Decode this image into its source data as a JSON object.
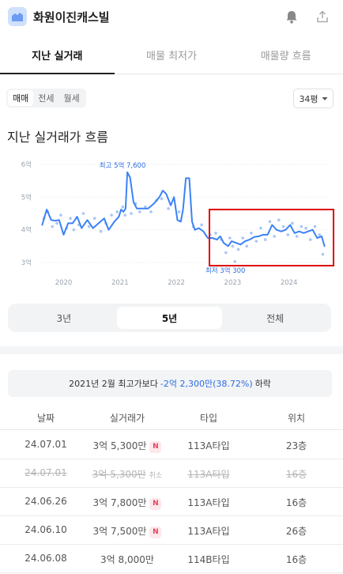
{
  "header": {
    "title": "화원이진캐스빌",
    "logo_icon": "building-logo-icon",
    "bell_icon": "bell-icon",
    "share_icon": "share-icon"
  },
  "tabs": [
    {
      "label": "지난 실거래",
      "active": true
    },
    {
      "label": "매물 최저가",
      "active": false
    },
    {
      "label": "매물량 흐름",
      "active": false
    }
  ],
  "trade_type": [
    {
      "label": "매매",
      "active": true
    },
    {
      "label": "전세",
      "active": false
    },
    {
      "label": "월세",
      "active": false
    }
  ],
  "size_select": {
    "value": "34평",
    "icon": "caret-down-icon"
  },
  "section_title": "지난 실거래가 흐름",
  "chart_data": {
    "type": "line",
    "y_ticks": [
      "3억",
      "4억",
      "5억",
      "6억"
    ],
    "x_ticks": [
      "2020",
      "2021",
      "2022",
      "2023",
      "2024"
    ],
    "ylim": [
      3.0,
      6.0
    ],
    "xlim": [
      2019.6,
      2024.65
    ],
    "line_color": "#3b82f6",
    "point_color": "#a9c6f6",
    "highlight_box_color": "#e00000",
    "annotations": {
      "max_label": "최고 5억 7,600",
      "min_label": "최저 3억 300"
    },
    "series": [
      {
        "values": [
          [
            2019.62,
            4.15
          ],
          [
            2019.7,
            4.62
          ],
          [
            2019.78,
            4.3
          ],
          [
            2019.85,
            4.28
          ],
          [
            2019.92,
            4.3
          ],
          [
            2020.0,
            3.85
          ],
          [
            2020.08,
            4.2
          ],
          [
            2020.16,
            4.2
          ],
          [
            2020.24,
            4.4
          ],
          [
            2020.32,
            4.05
          ],
          [
            2020.42,
            4.3
          ],
          [
            2020.52,
            4.05
          ],
          [
            2020.62,
            4.2
          ],
          [
            2020.72,
            4.35
          ],
          [
            2020.8,
            4.0
          ],
          [
            2020.9,
            4.25
          ],
          [
            2020.98,
            4.4
          ],
          [
            2021.02,
            4.62
          ],
          [
            2021.06,
            4.55
          ],
          [
            2021.1,
            4.65
          ],
          [
            2021.13,
            5.76
          ],
          [
            2021.18,
            5.6
          ],
          [
            2021.24,
            4.85
          ],
          [
            2021.3,
            4.65
          ],
          [
            2021.4,
            4.65
          ],
          [
            2021.5,
            4.65
          ],
          [
            2021.6,
            4.8
          ],
          [
            2021.7,
            5.0
          ],
          [
            2021.76,
            5.2
          ],
          [
            2021.82,
            5.1
          ],
          [
            2021.9,
            4.75
          ],
          [
            2021.96,
            5.0
          ],
          [
            2022.02,
            4.3
          ],
          [
            2022.08,
            4.25
          ],
          [
            2022.12,
            4.62
          ],
          [
            2022.17,
            5.58
          ],
          [
            2022.23,
            5.58
          ],
          [
            2022.28,
            4.25
          ],
          [
            2022.33,
            4.0
          ],
          [
            2022.4,
            4.05
          ],
          [
            2022.48,
            3.95
          ],
          [
            2022.56,
            3.75
          ],
          [
            2022.64,
            3.75
          ],
          [
            2022.72,
            3.7
          ],
          [
            2022.78,
            3.8
          ],
          [
            2022.84,
            3.6
          ],
          [
            2022.92,
            3.5
          ],
          [
            2022.98,
            3.65
          ],
          [
            2023.06,
            3.6
          ],
          [
            2023.14,
            3.55
          ],
          [
            2023.22,
            3.65
          ],
          [
            2023.3,
            3.7
          ],
          [
            2023.38,
            3.78
          ],
          [
            2023.46,
            3.8
          ],
          [
            2023.54,
            3.85
          ],
          [
            2023.62,
            3.85
          ],
          [
            2023.7,
            4.15
          ],
          [
            2023.78,
            4.0
          ],
          [
            2023.86,
            3.95
          ],
          [
            2023.94,
            4.0
          ],
          [
            2024.02,
            4.15
          ],
          [
            2024.1,
            3.9
          ],
          [
            2024.18,
            3.95
          ],
          [
            2024.26,
            3.9
          ],
          [
            2024.34,
            3.95
          ],
          [
            2024.42,
            4.0
          ],
          [
            2024.5,
            3.75
          ],
          [
            2024.58,
            3.8
          ],
          [
            2024.63,
            3.5
          ]
        ]
      }
    ],
    "scatter": [
      [
        2019.65,
        4.35
      ],
      [
        2019.72,
        4.55
      ],
      [
        2019.8,
        4.1
      ],
      [
        2019.88,
        4.2
      ],
      [
        2019.95,
        4.45
      ],
      [
        2020.05,
        4.05
      ],
      [
        2020.12,
        4.35
      ],
      [
        2020.18,
        4.0
      ],
      [
        2020.27,
        4.15
      ],
      [
        2020.35,
        4.5
      ],
      [
        2020.45,
        4.1
      ],
      [
        2020.55,
        4.35
      ],
      [
        2020.66,
        3.95
      ],
      [
        2020.75,
        4.2
      ],
      [
        2020.85,
        4.45
      ],
      [
        2020.95,
        4.55
      ],
      [
        2021.05,
        4.7
      ],
      [
        2021.09,
        4.45
      ],
      [
        2021.2,
        4.5
      ],
      [
        2021.28,
        4.8
      ],
      [
        2021.35,
        4.55
      ],
      [
        2021.45,
        4.7
      ],
      [
        2021.55,
        4.55
      ],
      [
        2021.65,
        4.9
      ],
      [
        2021.74,
        4.95
      ],
      [
        2021.86,
        4.65
      ],
      [
        2022.05,
        4.55
      ],
      [
        2022.3,
        4.1
      ],
      [
        2022.45,
        4.15
      ],
      [
        2022.6,
        3.85
      ],
      [
        2022.7,
        3.9
      ],
      [
        2022.8,
        3.7
      ],
      [
        2022.88,
        3.3
      ],
      [
        2022.95,
        3.75
      ],
      [
        2023.0,
        3.5
      ],
      [
        2023.04,
        3.03
      ],
      [
        2023.1,
        3.4
      ],
      [
        2023.18,
        3.75
      ],
      [
        2023.25,
        3.5
      ],
      [
        2023.33,
        3.9
      ],
      [
        2023.42,
        3.65
      ],
      [
        2023.5,
        4.05
      ],
      [
        2023.58,
        3.7
      ],
      [
        2023.66,
        4.25
      ],
      [
        2023.74,
        3.8
      ],
      [
        2023.82,
        4.3
      ],
      [
        2023.9,
        4.1
      ],
      [
        2023.98,
        3.85
      ],
      [
        2024.06,
        4.2
      ],
      [
        2024.14,
        3.8
      ],
      [
        2024.22,
        4.1
      ],
      [
        2024.3,
        4.05
      ],
      [
        2024.38,
        3.7
      ],
      [
        2024.46,
        4.1
      ],
      [
        2024.54,
        3.85
      ],
      [
        2024.6,
        3.25
      ]
    ]
  },
  "range_tabs": [
    {
      "label": "3년",
      "active": false
    },
    {
      "label": "5년",
      "active": true
    },
    {
      "label": "전체",
      "active": false
    }
  ],
  "info_banner": {
    "prefix": "2021년 2월 최고가보다",
    "diff": "-2억 2,300만(38.72%)",
    "suffix": "하락"
  },
  "table": {
    "headers": [
      "날짜",
      "실거래가",
      "타입",
      "위치"
    ],
    "rows": [
      {
        "date": "24.07.01",
        "price": "3억 5,300만",
        "badge": "N",
        "type": "113A타입",
        "floor": "23층"
      },
      {
        "date": "24.07.01",
        "price": "3억 5,300만",
        "cancel_tag": "취소",
        "type": "113A타입",
        "floor": "16층"
      },
      {
        "date": "24.06.26",
        "price": "3억 7,800만",
        "badge": "N",
        "type": "113A타입",
        "floor": "16층"
      },
      {
        "date": "24.06.10",
        "price": "3억 7,500만",
        "badge": "N",
        "type": "113A타입",
        "floor": "26층"
      },
      {
        "date": "24.06.08",
        "price": "3억 8,000만",
        "type": "114B타입",
        "floor": "16층"
      }
    ]
  }
}
